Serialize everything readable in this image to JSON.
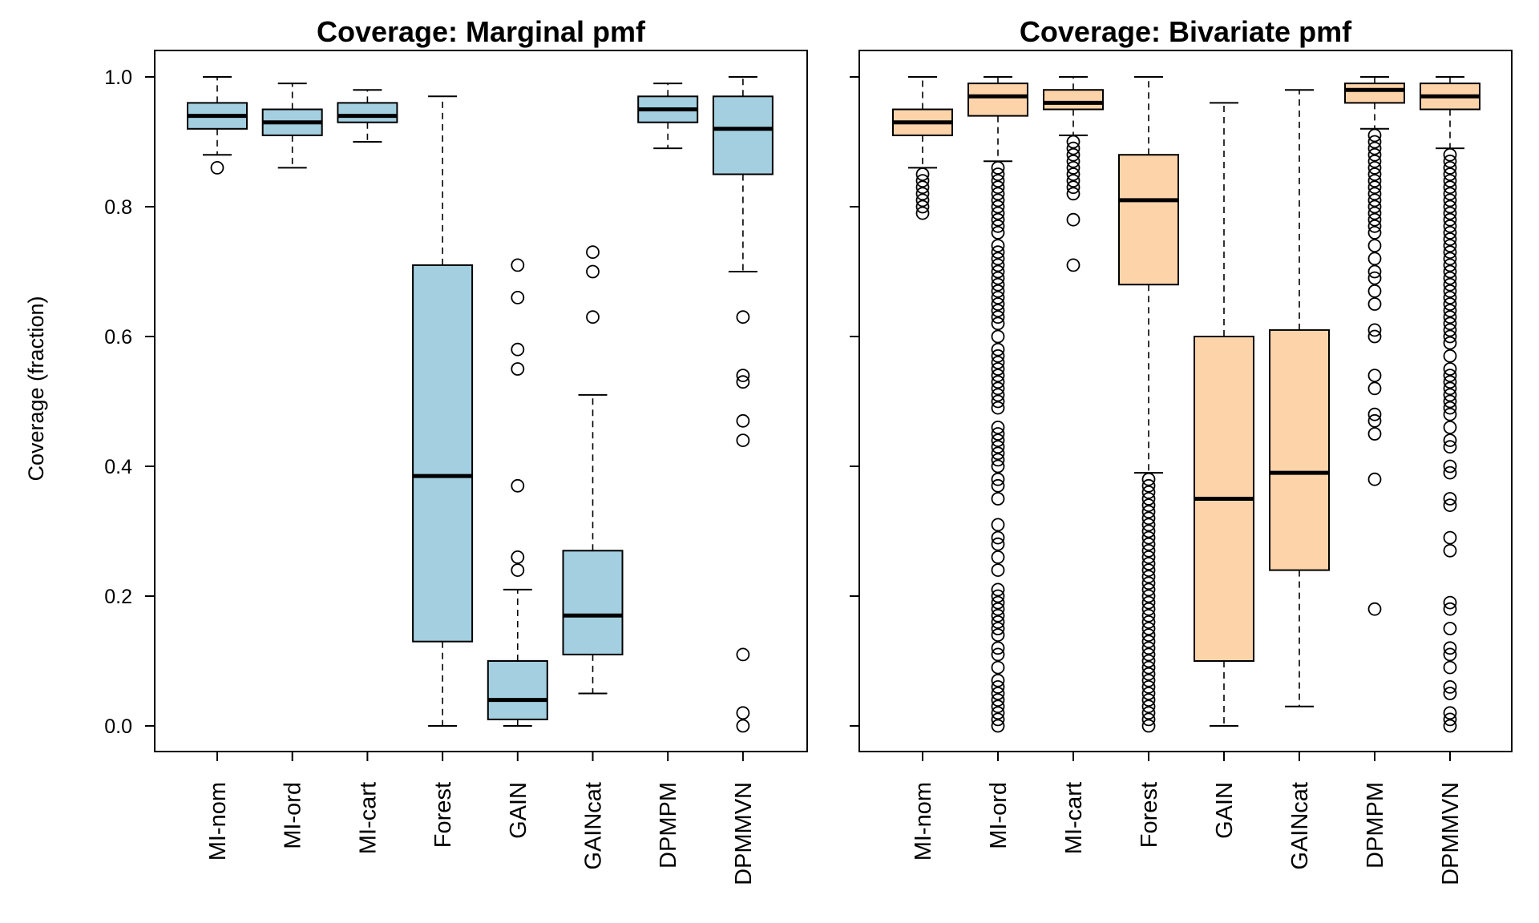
{
  "ylabel": "Coverage (fraction)",
  "chart_data": [
    {
      "type": "box",
      "title": "Coverage: Marginal pmf",
      "xlabel": "",
      "ylabel": "Coverage (fraction)",
      "ylim": [
        0,
        1
      ],
      "yticks": [
        "0.0",
        "0.2",
        "0.4",
        "0.6",
        "0.8",
        "1.0"
      ],
      "fill_color": "#a3cfe0",
      "categories": [
        "MI-nom",
        "MI-ord",
        "MI-cart",
        "Forest",
        "GAIN",
        "GAINcat",
        "DPMPM",
        "DPMMVN"
      ],
      "boxes": [
        {
          "whisker_low": 0.88,
          "q1": 0.92,
          "median": 0.94,
          "q3": 0.96,
          "whisker_high": 1.0,
          "outliers": [
            0.86
          ]
        },
        {
          "whisker_low": 0.86,
          "q1": 0.91,
          "median": 0.93,
          "q3": 0.95,
          "whisker_high": 0.99,
          "outliers": []
        },
        {
          "whisker_low": 0.9,
          "q1": 0.93,
          "median": 0.94,
          "q3": 0.96,
          "whisker_high": 0.98,
          "outliers": []
        },
        {
          "whisker_low": 0.0,
          "q1": 0.13,
          "median": 0.385,
          "q3": 0.71,
          "whisker_high": 0.97,
          "outliers": []
        },
        {
          "whisker_low": 0.0,
          "q1": 0.01,
          "median": 0.04,
          "q3": 0.1,
          "whisker_high": 0.21,
          "outliers": [
            0.24,
            0.26,
            0.37,
            0.55,
            0.58,
            0.66,
            0.71
          ]
        },
        {
          "whisker_low": 0.05,
          "q1": 0.11,
          "median": 0.17,
          "q3": 0.27,
          "whisker_high": 0.51,
          "outliers": [
            0.63,
            0.7,
            0.73
          ]
        },
        {
          "whisker_low": 0.89,
          "q1": 0.93,
          "median": 0.95,
          "q3": 0.97,
          "whisker_high": 0.99,
          "outliers": []
        },
        {
          "whisker_low": 0.7,
          "q1": 0.85,
          "median": 0.92,
          "q3": 0.97,
          "whisker_high": 1.0,
          "outliers": [
            0.0,
            0.02,
            0.11,
            0.44,
            0.47,
            0.53,
            0.54,
            0.63
          ]
        }
      ]
    },
    {
      "type": "box",
      "title": "Coverage: Bivariate pmf",
      "xlabel": "",
      "ylabel": "",
      "ylim": [
        0,
        1
      ],
      "yticks": [],
      "fill_color": "#fdd3a9",
      "categories": [
        "MI-nom",
        "MI-ord",
        "MI-cart",
        "Forest",
        "GAIN",
        "GAINcat",
        "DPMPM",
        "DPMMVN"
      ],
      "boxes": [
        {
          "whisker_low": 0.86,
          "q1": 0.91,
          "median": 0.93,
          "q3": 0.95,
          "whisker_high": 1.0,
          "outliers": [
            0.79,
            0.8,
            0.81,
            0.82,
            0.83,
            0.84,
            0.85
          ]
        },
        {
          "whisker_low": 0.87,
          "q1": 0.94,
          "median": 0.97,
          "q3": 0.99,
          "whisker_high": 1.0,
          "outliers": [
            0.0,
            0.01,
            0.02,
            0.03,
            0.04,
            0.05,
            0.06,
            0.07,
            0.09,
            0.11,
            0.12,
            0.14,
            0.15,
            0.16,
            0.17,
            0.18,
            0.19,
            0.2,
            0.21,
            0.24,
            0.26,
            0.28,
            0.29,
            0.31,
            0.35,
            0.37,
            0.38,
            0.4,
            0.41,
            0.42,
            0.43,
            0.44,
            0.45,
            0.46,
            0.49,
            0.5,
            0.51,
            0.52,
            0.53,
            0.54,
            0.55,
            0.56,
            0.57,
            0.58,
            0.6,
            0.62,
            0.63,
            0.64,
            0.65,
            0.66,
            0.67,
            0.68,
            0.69,
            0.7,
            0.71,
            0.72,
            0.73,
            0.74,
            0.76,
            0.77,
            0.78,
            0.79,
            0.8,
            0.81,
            0.82,
            0.83,
            0.84,
            0.85,
            0.86
          ]
        },
        {
          "whisker_low": 0.91,
          "q1": 0.95,
          "median": 0.96,
          "q3": 0.98,
          "whisker_high": 1.0,
          "outliers": [
            0.71,
            0.78,
            0.82,
            0.83,
            0.84,
            0.85,
            0.86,
            0.87,
            0.88,
            0.89,
            0.9
          ]
        },
        {
          "whisker_low": 0.39,
          "q1": 0.68,
          "median": 0.81,
          "q3": 0.88,
          "whisker_high": 1.0,
          "outliers": [
            0.0,
            0.01,
            0.02,
            0.03,
            0.04,
            0.05,
            0.06,
            0.07,
            0.08,
            0.09,
            0.1,
            0.11,
            0.12,
            0.13,
            0.14,
            0.15,
            0.16,
            0.17,
            0.18,
            0.19,
            0.2,
            0.21,
            0.22,
            0.23,
            0.24,
            0.25,
            0.26,
            0.27,
            0.28,
            0.29,
            0.3,
            0.31,
            0.32,
            0.33,
            0.34,
            0.35,
            0.36,
            0.37,
            0.38
          ]
        },
        {
          "whisker_low": 0.0,
          "q1": 0.1,
          "median": 0.35,
          "q3": 0.6,
          "whisker_high": 0.96,
          "outliers": []
        },
        {
          "whisker_low": 0.03,
          "q1": 0.24,
          "median": 0.39,
          "q3": 0.61,
          "whisker_high": 0.98,
          "outliers": []
        },
        {
          "whisker_low": 0.92,
          "q1": 0.96,
          "median": 0.98,
          "q3": 0.99,
          "whisker_high": 1.0,
          "outliers": [
            0.18,
            0.38,
            0.45,
            0.47,
            0.48,
            0.52,
            0.54,
            0.6,
            0.61,
            0.65,
            0.67,
            0.69,
            0.7,
            0.72,
            0.74,
            0.76,
            0.77,
            0.78,
            0.79,
            0.8,
            0.81,
            0.82,
            0.83,
            0.84,
            0.85,
            0.86,
            0.87,
            0.88,
            0.89,
            0.9,
            0.91
          ]
        },
        {
          "whisker_low": 0.89,
          "q1": 0.95,
          "median": 0.97,
          "q3": 0.99,
          "whisker_high": 1.0,
          "outliers": [
            0.0,
            0.01,
            0.02,
            0.05,
            0.06,
            0.09,
            0.11,
            0.12,
            0.15,
            0.18,
            0.19,
            0.27,
            0.29,
            0.34,
            0.35,
            0.39,
            0.4,
            0.43,
            0.44,
            0.46,
            0.48,
            0.49,
            0.5,
            0.51,
            0.52,
            0.53,
            0.54,
            0.55,
            0.57,
            0.59,
            0.6,
            0.61,
            0.62,
            0.63,
            0.64,
            0.65,
            0.66,
            0.67,
            0.68,
            0.69,
            0.7,
            0.71,
            0.72,
            0.73,
            0.74,
            0.75,
            0.76,
            0.77,
            0.78,
            0.79,
            0.8,
            0.81,
            0.82,
            0.83,
            0.84,
            0.85,
            0.86,
            0.87,
            0.88
          ]
        }
      ]
    }
  ]
}
